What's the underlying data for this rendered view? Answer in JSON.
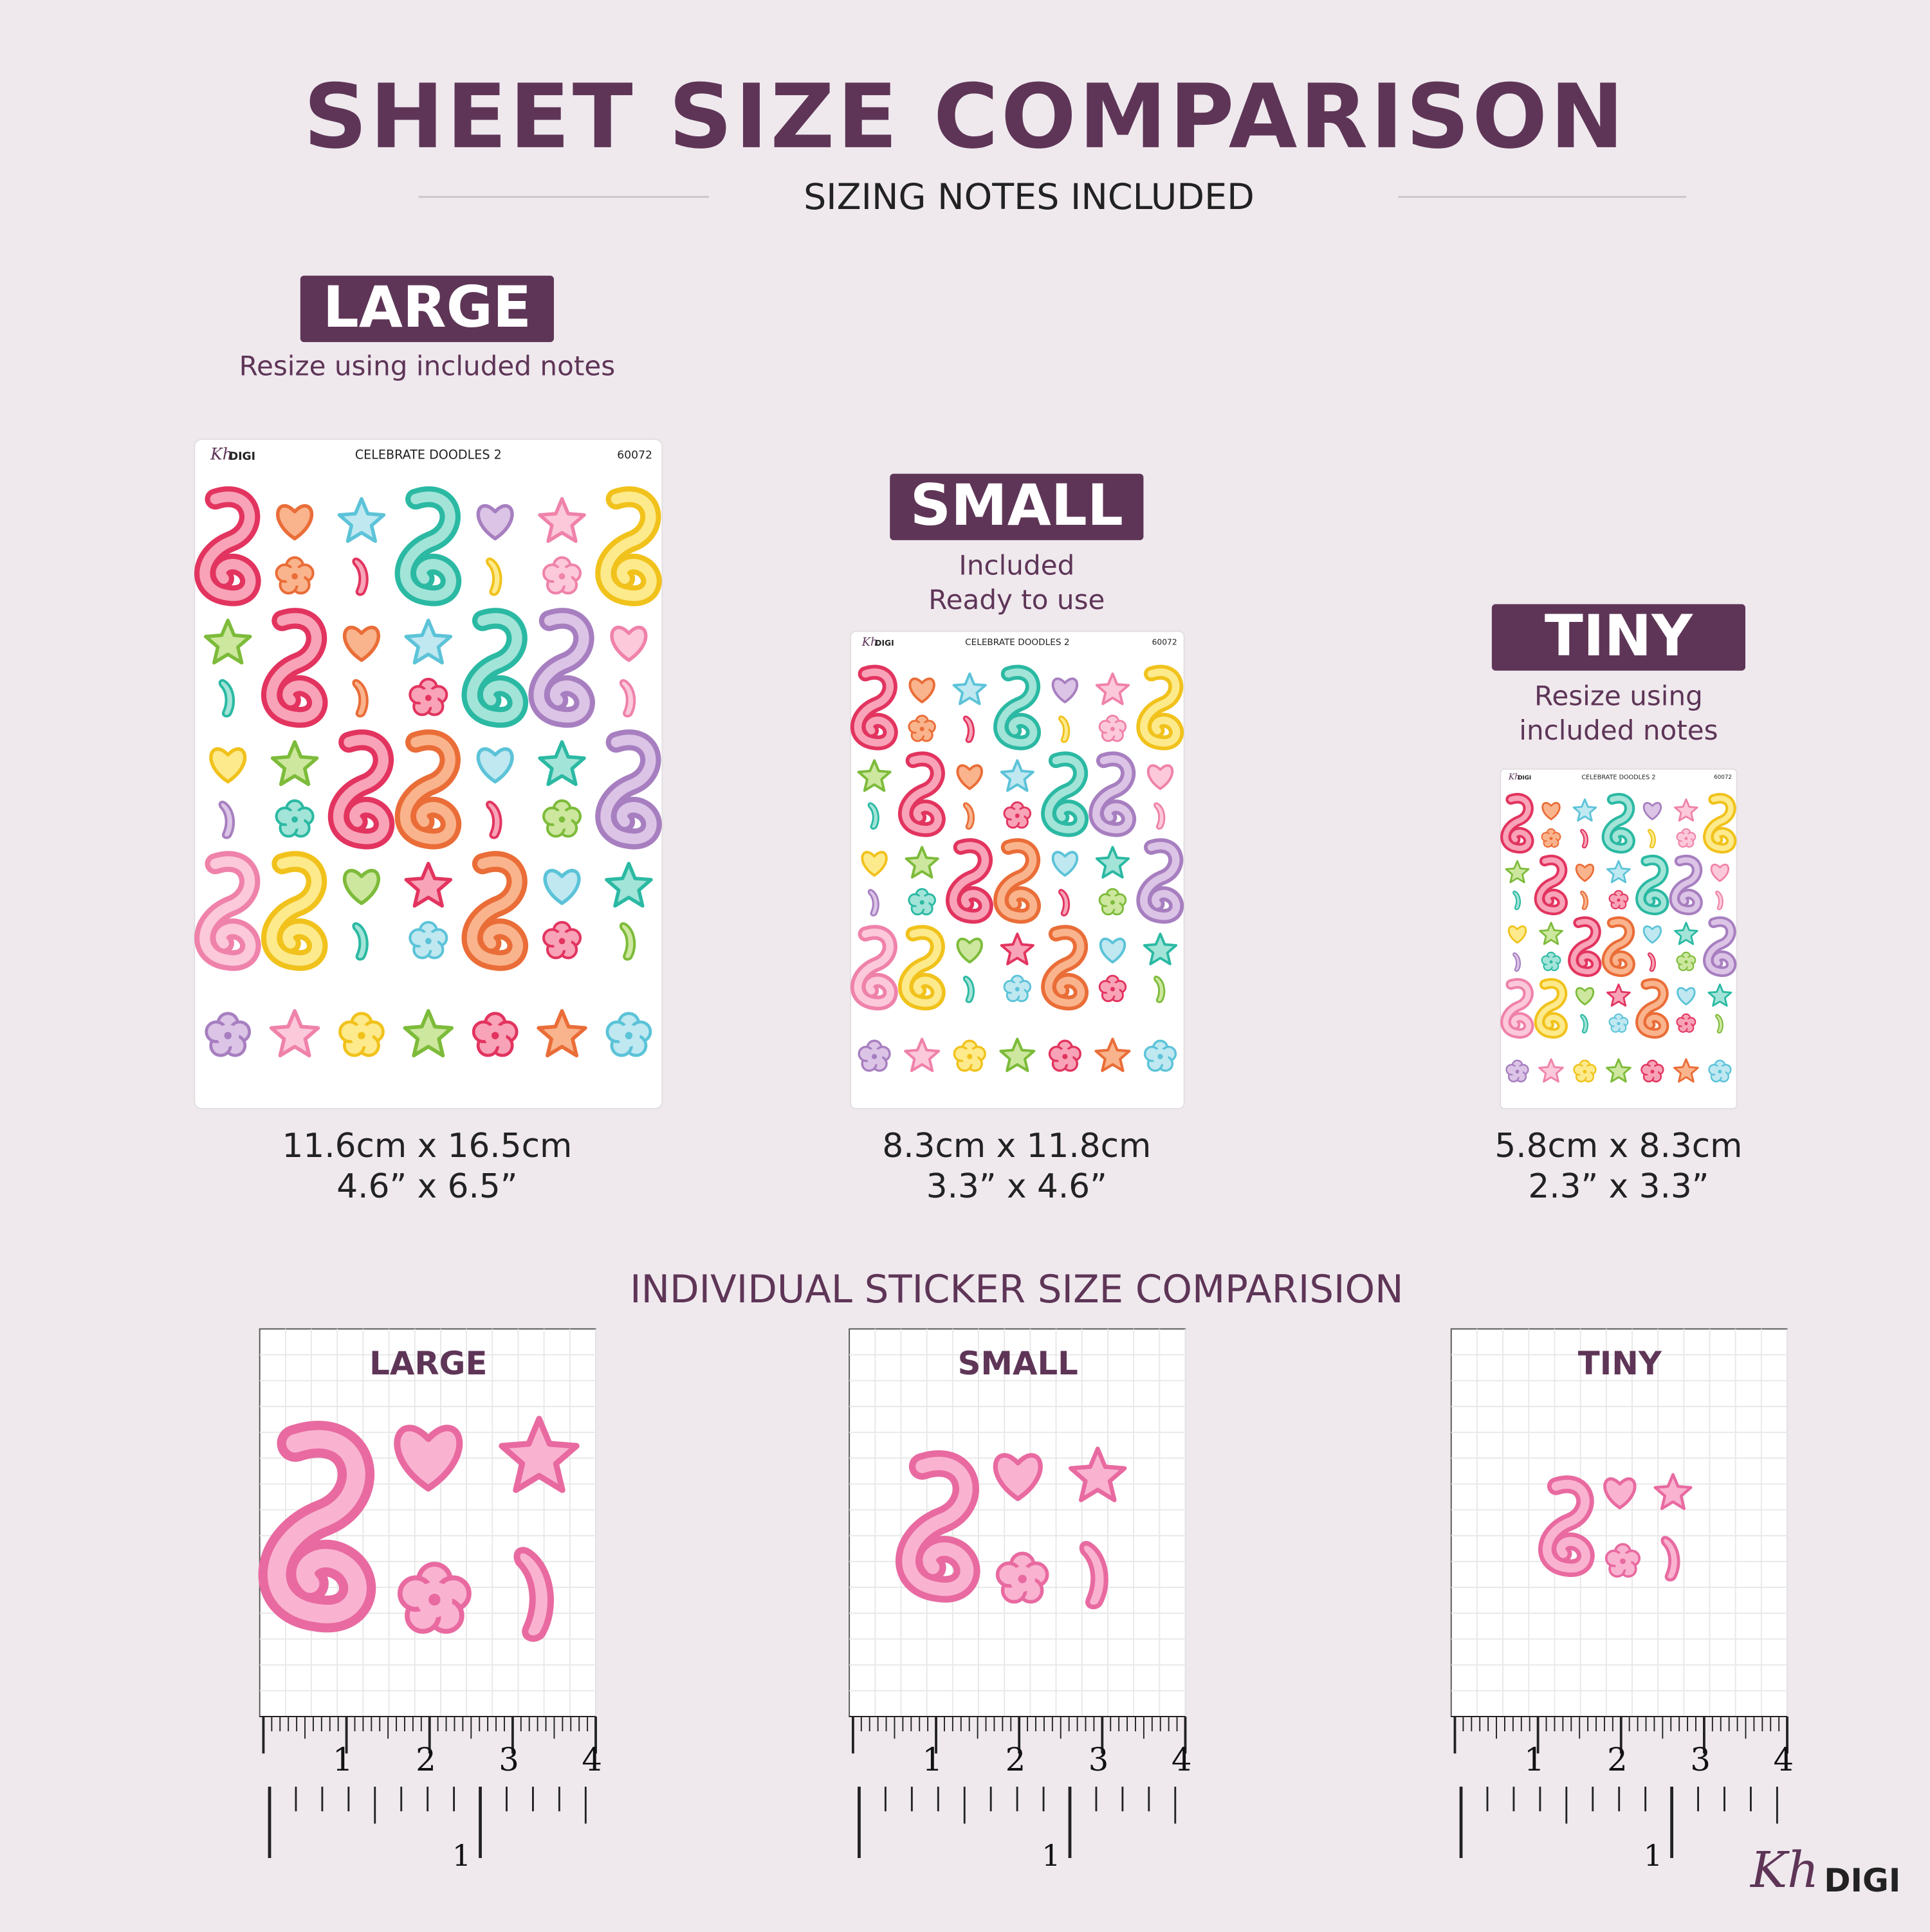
{
  "header": {
    "title": "SHEET SIZE COMPARISON",
    "subtitle": "SIZING NOTES INCLUDED"
  },
  "sheets": [
    {
      "label": "LARGE",
      "note": [
        "Resize using included notes"
      ],
      "brand_script": "Kh",
      "brand": "DIGI",
      "sheet_title": "CELEBRATE DOODLES 2",
      "code": "60072",
      "size_cm": "11.6cm x 16.5cm",
      "size_in": "4.6” x 6.5”"
    },
    {
      "label": "SMALL",
      "note": [
        "Included",
        "Ready to use"
      ],
      "brand_script": "Kh",
      "brand": "DIGI",
      "sheet_title": "CELEBRATE DOODLES 2",
      "code": "60072",
      "size_cm": "8.3cm x 11.8cm",
      "size_in": "3.3” x 4.6”"
    },
    {
      "label": "TINY",
      "note": [
        "Resize using",
        "included notes"
      ],
      "brand_script": "Kh",
      "brand": "DIGI",
      "sheet_title": "CELEBRATE DOODLES 2",
      "code": "60072",
      "size_cm": "5.8cm x 8.3cm",
      "size_in": "2.3” x 3.3”"
    }
  ],
  "sticker_section": {
    "title": "INDIVIDUAL STICKER SIZE COMPARISION",
    "panels": [
      {
        "label": "LARGE",
        "ruler_top": [
          "1",
          "2",
          "3",
          "4"
        ],
        "ruler_bottom": "1"
      },
      {
        "label": "SMALL",
        "ruler_top": [
          "1",
          "2",
          "3",
          "4"
        ],
        "ruler_bottom": "1"
      },
      {
        "label": "TINY",
        "ruler_top": [
          "1",
          "2",
          "3",
          "4"
        ],
        "ruler_bottom": "1"
      }
    ]
  },
  "logo": {
    "script": "Kh",
    "text": "DIGI"
  }
}
